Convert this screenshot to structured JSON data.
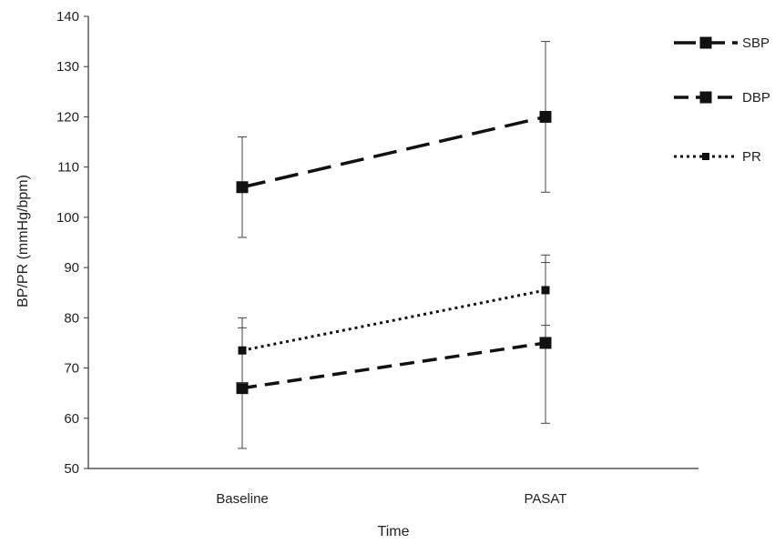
{
  "chart_data": {
    "type": "line",
    "categories": [
      "Baseline",
      "PASAT"
    ],
    "xlabel": "Time",
    "ylabel": "BP/PR  (mmHg/bpm)",
    "ylim": [
      50,
      140
    ],
    "yticks": [
      50,
      60,
      70,
      80,
      90,
      100,
      110,
      120,
      130,
      140
    ],
    "grid": false,
    "legend_position": "top-right",
    "series": [
      {
        "name": "SBP",
        "values": [
          106,
          120
        ],
        "error": [
          10,
          15
        ],
        "line_style": "long-dash",
        "marker": "square"
      },
      {
        "name": "DBP",
        "values": [
          66,
          75
        ],
        "error": [
          12,
          16
        ],
        "line_style": "dash",
        "marker": "square"
      },
      {
        "name": "PR",
        "values": [
          73.5,
          85.5
        ],
        "error": [
          6.5,
          7
        ],
        "line_style": "dotted",
        "marker": "square"
      }
    ],
    "colors": {
      "line": "#111111",
      "axis": "#333333",
      "text": "#222222"
    }
  }
}
